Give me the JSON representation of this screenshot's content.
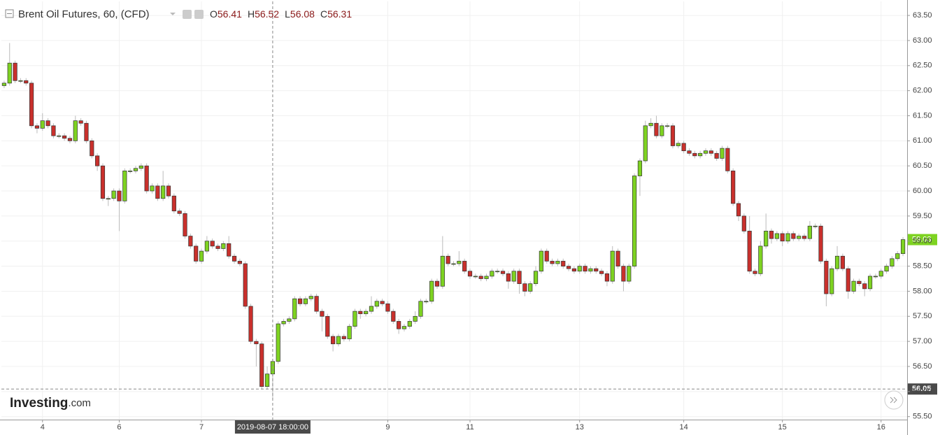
{
  "chart_data": {
    "type": "candlestick",
    "title": "Brent Oil Futures, 60, (CFD)",
    "ohlc": [
      {
        "key": "O",
        "value": 56.41
      },
      {
        "key": "H",
        "value": 56.52
      },
      {
        "key": "L",
        "value": 56.08
      },
      {
        "key": "C",
        "value": 56.31
      }
    ],
    "logo": [
      "Investing",
      ".com"
    ],
    "up_color": "#7ed321",
    "down_color": "#c9302c",
    "open": [
      62.1,
      62.15,
      62.55,
      62.2,
      62.2,
      62.15,
      61.3,
      61.25,
      61.4,
      61.3,
      61.1,
      61.1,
      61.05,
      61.0,
      61.4,
      61.35,
      61.0,
      60.7,
      60.5,
      59.85,
      59.85,
      60.0,
      59.8,
      60.4,
      60.4,
      60.45,
      60.5,
      60.0,
      60.1,
      59.85,
      60.1,
      59.9,
      59.6,
      59.55,
      59.1,
      58.9,
      58.6,
      58.8,
      59.0,
      58.9,
      58.85,
      58.95,
      58.7,
      58.6,
      58.55,
      57.7,
      57.0,
      56.95,
      56.1,
      56.35,
      56.6,
      57.35,
      57.4,
      57.45,
      57.85,
      57.75,
      57.85,
      57.9,
      57.6,
      57.5,
      57.1,
      56.95,
      57.1,
      57.05,
      57.3,
      57.6,
      57.55,
      57.6,
      57.7,
      57.8,
      57.75,
      57.6,
      57.4,
      57.25,
      57.3,
      57.4,
      57.5,
      57.8,
      57.8,
      58.2,
      58.1,
      58.7,
      58.55,
      58.55,
      58.6,
      58.4,
      58.3,
      58.3,
      58.25,
      58.3,
      58.4,
      58.4,
      58.35,
      58.2,
      58.4,
      58.15,
      58.0,
      58.15,
      58.4,
      58.8,
      58.6,
      58.55,
      58.6,
      58.5,
      58.45,
      58.4,
      58.5,
      58.4,
      58.45,
      58.4,
      58.35,
      58.2,
      58.8,
      58.5,
      58.2,
      58.5,
      60.3,
      60.6,
      61.3,
      61.35,
      61.1,
      61.3,
      61.3,
      60.9,
      60.95,
      60.8,
      60.75,
      60.7,
      60.75,
      60.8,
      60.75,
      60.65,
      60.85,
      60.4,
      59.75,
      59.5,
      59.2,
      58.4,
      58.35,
      58.9,
      59.2,
      59.05,
      59.15,
      59.0,
      59.15,
      59.05,
      59.1,
      59.05,
      59.3,
      59.3,
      58.6,
      57.95,
      58.45,
      58.7,
      58.45,
      58.0,
      58.2,
      58.15,
      58.05,
      58.3,
      58.3,
      58.4,
      58.5,
      58.65,
      58.75
    ],
    "high": [
      62.2,
      62.95,
      62.6,
      62.25,
      62.25,
      62.2,
      61.35,
      61.55,
      61.45,
      61.35,
      61.15,
      61.15,
      61.1,
      61.5,
      61.45,
      61.4,
      61.05,
      60.75,
      60.55,
      59.9,
      60.05,
      60.05,
      60.45,
      60.45,
      60.5,
      60.55,
      60.55,
      60.15,
      60.15,
      60.4,
      60.15,
      59.95,
      59.65,
      59.6,
      59.15,
      58.95,
      58.85,
      59.1,
      59.05,
      58.95,
      59.0,
      59.1,
      58.75,
      58.65,
      58.6,
      57.75,
      57.05,
      57.0,
      56.5,
      56.65,
      57.4,
      57.45,
      57.5,
      57.9,
      57.9,
      57.9,
      57.95,
      57.95,
      57.65,
      57.55,
      57.15,
      57.15,
      57.15,
      57.35,
      57.65,
      57.65,
      57.65,
      57.9,
      57.85,
      57.85,
      57.8,
      57.65,
      57.45,
      57.35,
      57.45,
      57.6,
      57.85,
      57.85,
      58.25,
      58.25,
      59.1,
      58.75,
      58.6,
      58.8,
      58.65,
      58.45,
      58.35,
      58.35,
      58.35,
      58.45,
      58.45,
      58.45,
      58.4,
      58.45,
      58.45,
      58.2,
      58.2,
      58.5,
      58.85,
      58.85,
      58.65,
      58.65,
      58.65,
      58.55,
      58.5,
      58.55,
      58.55,
      58.5,
      58.5,
      58.45,
      58.4,
      58.9,
      58.85,
      58.55,
      58.55,
      60.35,
      60.65,
      61.4,
      61.45,
      61.5,
      61.35,
      61.35,
      61.35,
      61.0,
      61.0,
      60.85,
      60.8,
      60.8,
      60.85,
      60.85,
      60.8,
      60.9,
      60.9,
      60.45,
      59.8,
      59.55,
      59.5,
      58.45,
      59.0,
      59.55,
      59.25,
      59.2,
      59.2,
      59.2,
      59.2,
      59.15,
      59.15,
      59.4,
      59.35,
      59.35,
      58.65,
      58.5,
      58.9,
      58.75,
      58.5,
      58.25,
      58.25,
      58.2,
      58.35,
      58.35,
      58.45,
      58.55,
      58.7,
      58.8,
      59.08
    ],
    "low": [
      62.05,
      62.1,
      62.15,
      62.15,
      62.1,
      61.25,
      61.15,
      61.2,
      61.25,
      61.05,
      61.05,
      61.0,
      60.95,
      60.95,
      61.3,
      60.95,
      60.65,
      60.4,
      59.8,
      59.7,
      59.8,
      59.2,
      59.75,
      60.35,
      60.35,
      60.4,
      59.95,
      59.95,
      59.8,
      59.8,
      59.85,
      59.55,
      59.5,
      59.05,
      58.85,
      58.55,
      58.55,
      58.75,
      58.85,
      58.8,
      58.8,
      58.65,
      58.55,
      58.5,
      57.65,
      56.95,
      56.5,
      56.05,
      56.05,
      55.85,
      56.55,
      57.3,
      57.35,
      57.4,
      57.7,
      57.7,
      57.8,
      57.55,
      57.2,
      57.05,
      56.8,
      56.9,
      57.0,
      57.0,
      57.25,
      57.45,
      57.5,
      57.55,
      57.65,
      57.7,
      57.55,
      57.35,
      57.15,
      57.2,
      57.25,
      57.35,
      57.45,
      57.75,
      57.75,
      58.05,
      58.05,
      58.5,
      58.5,
      58.5,
      58.35,
      58.25,
      58.25,
      58.2,
      58.2,
      58.25,
      58.35,
      58.3,
      58.05,
      58.15,
      57.95,
      57.9,
      57.95,
      58.1,
      58.35,
      58.55,
      58.5,
      58.5,
      58.45,
      58.4,
      58.35,
      58.35,
      58.35,
      58.35,
      58.35,
      58.3,
      58.1,
      58.15,
      58.45,
      58.0,
      58.15,
      58.45,
      59.9,
      60.55,
      61.25,
      61.05,
      61.05,
      61.25,
      60.85,
      60.85,
      60.75,
      60.7,
      60.65,
      60.65,
      60.7,
      60.7,
      60.6,
      60.6,
      60.35,
      59.7,
      59.4,
      59.15,
      58.35,
      58.3,
      58.3,
      58.85,
      58.95,
      59.0,
      58.9,
      58.95,
      59.0,
      59.0,
      59.0,
      59.0,
      59.25,
      58.55,
      57.7,
      57.9,
      58.4,
      58.4,
      57.85,
      57.95,
      58.1,
      57.9,
      58.0,
      58.25,
      58.25,
      58.35,
      58.45,
      58.6,
      58.7
    ],
    "close": [
      62.15,
      62.55,
      62.2,
      62.2,
      62.15,
      61.3,
      61.25,
      61.4,
      61.3,
      61.1,
      61.1,
      61.05,
      61.0,
      61.4,
      61.35,
      61.0,
      60.7,
      60.5,
      59.85,
      59.85,
      60.0,
      59.8,
      60.4,
      60.4,
      60.45,
      60.5,
      60.0,
      60.1,
      59.85,
      60.1,
      59.9,
      59.6,
      59.55,
      59.1,
      58.9,
      58.6,
      58.8,
      59.0,
      58.9,
      58.85,
      58.95,
      58.7,
      58.6,
      58.55,
      57.7,
      57.0,
      56.95,
      56.1,
      56.35,
      56.6,
      57.35,
      57.4,
      57.45,
      57.85,
      57.75,
      57.85,
      57.9,
      57.6,
      57.5,
      57.1,
      56.95,
      57.1,
      57.05,
      57.3,
      57.6,
      57.55,
      57.6,
      57.7,
      57.8,
      57.75,
      57.6,
      57.4,
      57.25,
      57.3,
      57.4,
      57.5,
      57.8,
      57.8,
      58.2,
      58.1,
      58.7,
      58.55,
      58.55,
      58.6,
      58.4,
      58.3,
      58.3,
      58.25,
      58.3,
      58.4,
      58.4,
      58.35,
      58.2,
      58.4,
      58.15,
      58.0,
      58.15,
      58.4,
      58.8,
      58.6,
      58.55,
      58.6,
      58.5,
      58.45,
      58.4,
      58.5,
      58.4,
      58.45,
      58.4,
      58.35,
      58.2,
      58.8,
      58.5,
      58.2,
      58.5,
      60.3,
      60.6,
      61.3,
      61.35,
      61.1,
      61.3,
      61.3,
      60.9,
      60.95,
      60.8,
      60.75,
      60.7,
      60.75,
      60.8,
      60.75,
      60.65,
      60.85,
      60.4,
      59.75,
      59.5,
      59.2,
      58.4,
      58.35,
      58.9,
      59.2,
      59.05,
      59.15,
      59.0,
      59.15,
      59.05,
      59.1,
      59.05,
      59.3,
      59.3,
      58.6,
      57.95,
      58.45,
      58.7,
      58.45,
      58.0,
      58.2,
      58.15,
      58.05,
      58.3,
      58.3,
      58.4,
      58.5,
      58.65,
      58.75,
      59.03
    ],
    "ylim": [
      55.44,
      63.78
    ],
    "yticks": [
      {
        "value": 55.5,
        "label": "55.50"
      },
      {
        "value": 56,
        "label": "56.00"
      },
      {
        "value": 56.5,
        "label": "56.50"
      },
      {
        "value": 57,
        "label": "57.00"
      },
      {
        "value": 57.5,
        "label": "57.50"
      },
      {
        "value": 58,
        "label": "58.00"
      },
      {
        "value": 58.5,
        "label": "58.50"
      },
      {
        "value": 59,
        "label": "59.00"
      },
      {
        "value": 59.5,
        "label": "59.50"
      },
      {
        "value": 60,
        "label": "60.00"
      },
      {
        "value": 60.5,
        "label": "60.50"
      },
      {
        "value": 61,
        "label": "61.00"
      },
      {
        "value": 61.5,
        "label": "61.50"
      },
      {
        "value": 62,
        "label": "62.00"
      },
      {
        "value": 62.5,
        "label": "62.50"
      },
      {
        "value": 63,
        "label": "63.00"
      },
      {
        "value": 63.5,
        "label": "63.50"
      }
    ],
    "xticks": [
      {
        "value": 7,
        "label": "4"
      },
      {
        "value": 21,
        "label": "6"
      },
      {
        "value": 36,
        "label": "7"
      },
      {
        "value": 70,
        "label": "9"
      },
      {
        "value": 85,
        "label": "11"
      },
      {
        "value": 105,
        "label": "13"
      },
      {
        "value": 124,
        "label": "14"
      },
      {
        "value": 142,
        "label": "15"
      },
      {
        "value": 160,
        "label": "16"
      }
    ],
    "crosshair_time": "2019-08-07 18:00:00",
    "crosshair_price": 56.05,
    "last_price": 59.03,
    "grid": true
  }
}
